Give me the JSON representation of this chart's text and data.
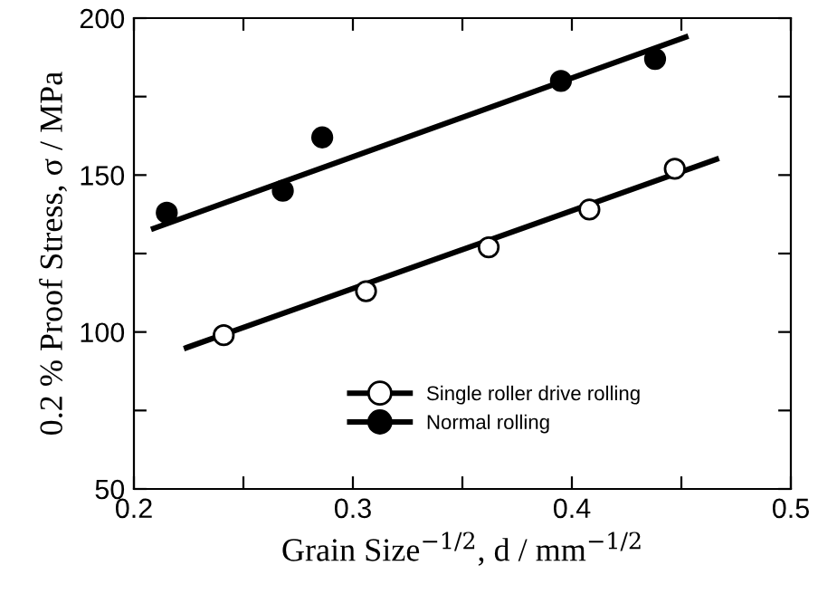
{
  "chart_data": {
    "type": "scatter",
    "xlabel": "Grain Size$^{−1/2}$, d / mm$^{−1/2}$",
    "ylabel": "0.2 % Proof Stress, σ / MPa",
    "xlim": [
      0.2,
      0.5
    ],
    "ylim": [
      50,
      200
    ],
    "xticks": [
      0.2,
      {
        "value": 0.25,
        "label": null
      },
      0.3,
      {
        "value": 0.35,
        "label": null
      },
      0.4,
      {
        "value": 0.45,
        "label": null
      },
      0.5
    ],
    "yticks": [
      50,
      {
        "value": 75,
        "label": null
      },
      100,
      {
        "value": 125,
        "label": null
      },
      150,
      {
        "value": 175,
        "label": null
      },
      200
    ],
    "grid": false,
    "legend": "bottom",
    "series": [
      {
        "name": "Single roller drive rolling",
        "marker": "circle",
        "color": "#ffffff",
        "x": [
          0.241,
          0.306,
          0.362,
          0.408,
          0.447
        ],
        "values": [
          99,
          113,
          127,
          139,
          152
        ]
      },
      {
        "name": "Normal rolling",
        "marker": "circle",
        "color": "#000000",
        "x": [
          0.215,
          0.268,
          0.286,
          0.395,
          0.438
        ],
        "values": [
          138,
          145,
          162,
          180,
          187
        ]
      },
      {
        "type": "line",
        "marker": "none",
        "color": "#000000",
        "x": [
          0.224,
          0.466
        ],
        "values": [
          95,
          155
        ]
      },
      {
        "type": "line",
        "marker": "none",
        "color": "#000000",
        "x": [
          0.209,
          0.452
        ],
        "values": [
          133,
          194
        ]
      }
    ]
  }
}
